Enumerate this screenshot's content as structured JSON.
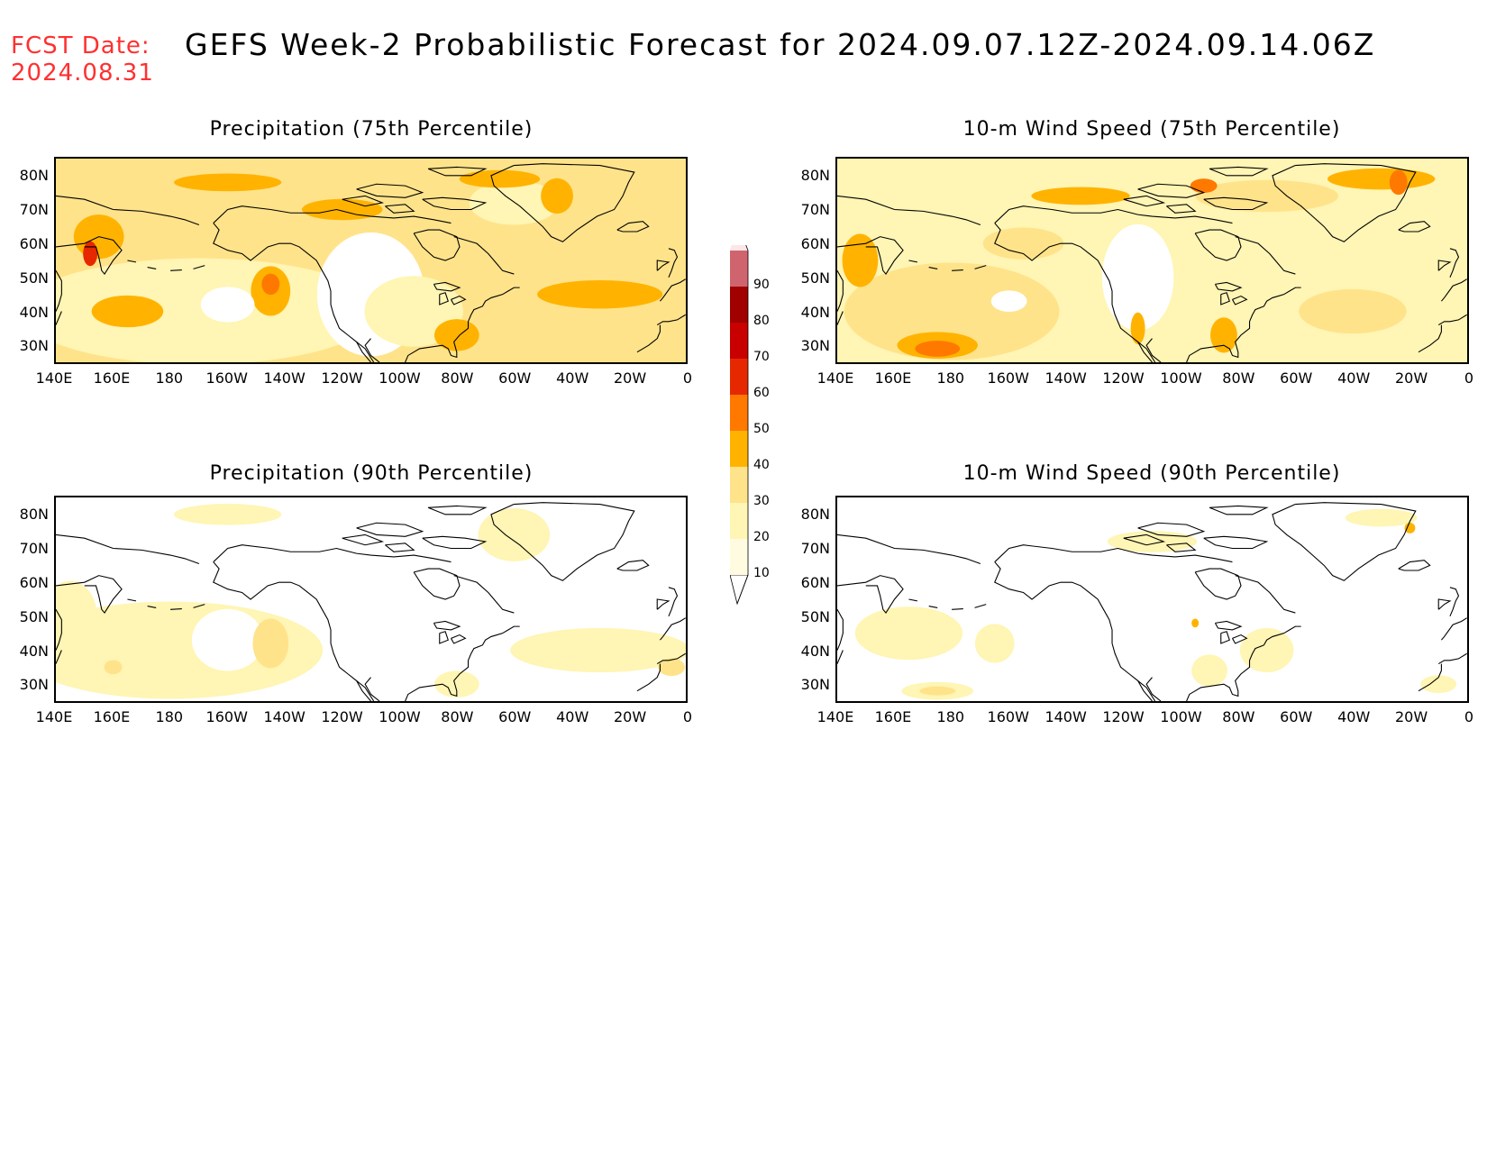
{
  "fcst_label": "FCST Date:\n2024.08.31",
  "title": "GEFS Week-2 Probabilistic Forecast for 2024.09.07.12Z-2024.09.14.06Z",
  "panels": [
    {
      "id": "precip-75",
      "title": "Precipitation (75th Percentile)"
    },
    {
      "id": "wind-75",
      "title": "10-m Wind Speed (75th Percentile)"
    },
    {
      "id": "precip-90",
      "title": "Precipitation (90th Percentile)"
    },
    {
      "id": "wind-90",
      "title": "10-m Wind Speed (90th Percentile)"
    }
  ],
  "lat_labels": [
    "80N",
    "70N",
    "60N",
    "50N",
    "40N",
    "30N"
  ],
  "lon_labels": [
    "140E",
    "160E",
    "180",
    "160W",
    "140W",
    "120W",
    "100W",
    "80W",
    "60W",
    "40W",
    "20W",
    "0"
  ],
  "colorbar": {
    "levels": [
      "10",
      "20",
      "30",
      "40",
      "50",
      "60",
      "70",
      "80",
      "90"
    ],
    "colors": [
      "#fff5b4",
      "#ffe38a",
      "#ffb300",
      "#ff7800",
      "#e62800",
      "#c80000",
      "#a00000",
      "#d0646e",
      "#f5aab4",
      "#fde6e8"
    ]
  }
}
